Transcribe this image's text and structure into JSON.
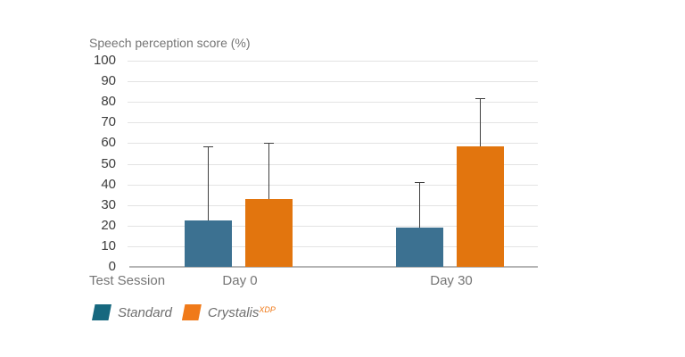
{
  "chart_data": {
    "type": "bar",
    "title": "Speech perception score (%)",
    "xlabel": "Test Session",
    "categories": [
      "Day 0",
      "Day 30"
    ],
    "series": [
      {
        "name": "Standard",
        "color": "#3c7191",
        "legend_color": "#16687f",
        "values": [
          22.5,
          19
        ],
        "error_top": [
          58.5,
          41
        ]
      },
      {
        "name": "Crystalis",
        "name_superscript": "XDP",
        "color": "#e2750e",
        "legend_color": "#f07a19",
        "values": [
          33,
          58.5
        ],
        "error_top": [
          60,
          82
        ]
      }
    ],
    "ylim": [
      0,
      100
    ],
    "yticks": [
      0,
      10,
      20,
      30,
      40,
      50,
      60,
      70,
      80,
      90,
      100
    ],
    "grid": true,
    "legend_position": "bottom-left"
  },
  "colors": {
    "grid": "#e3e3e3",
    "axis": "#b5b5b5",
    "tick_text": "#3d3d3d",
    "label_text": "#757575",
    "legend_text": "#6f6f6f",
    "error_bar": "#3f3f3f",
    "superscript": "#f07a19",
    "background": "#ffffff"
  }
}
